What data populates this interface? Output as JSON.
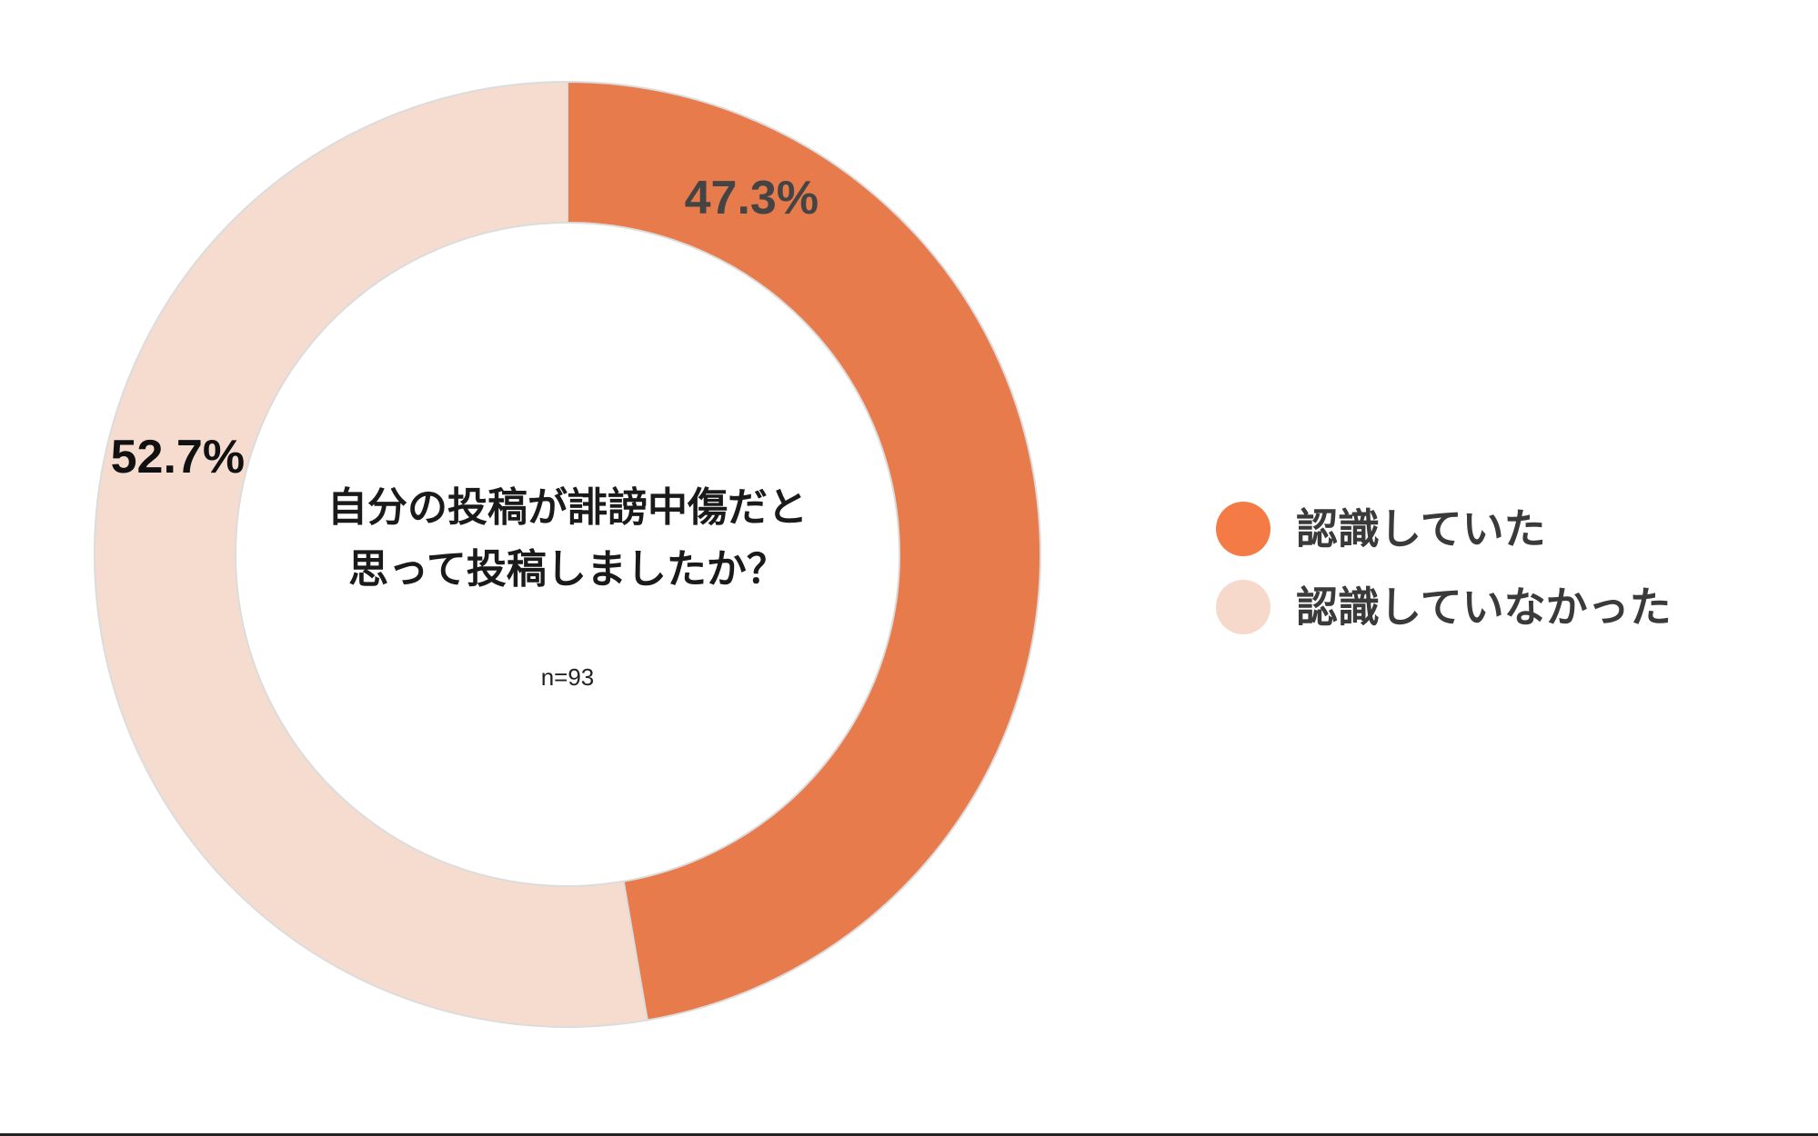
{
  "chart_data": {
    "type": "pie",
    "donut": true,
    "title_lines": [
      "自分の投稿が誹謗中傷だと",
      "思って投稿しましたか？"
    ],
    "note": "n=93",
    "start_angle_deg": 0,
    "direction": "clockwise",
    "legend_position": "right",
    "slices": [
      {
        "label": "認識していた",
        "value": 47.3,
        "display": "47.3%",
        "color": "#e87b4c",
        "legend_color": "#f47b45",
        "label_color": "#444444"
      },
      {
        "label": "認識していなかった",
        "value": 52.7,
        "display": "52.7%",
        "color": "#f5dccf",
        "legend_color": "#f6d9ca",
        "label_color": "#111111"
      }
    ]
  }
}
